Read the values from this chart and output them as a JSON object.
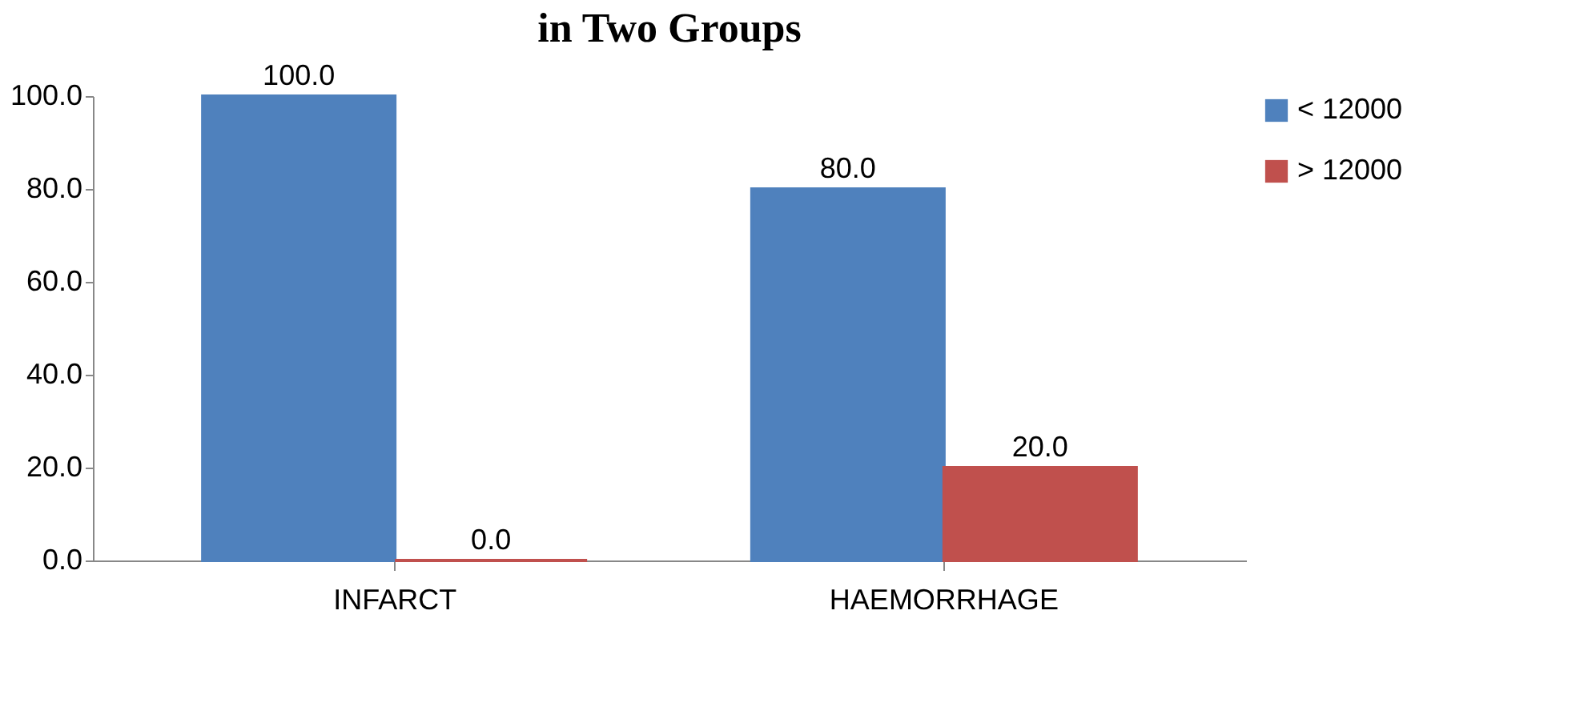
{
  "chart_data": {
    "type": "bar",
    "title": "in Two Groups",
    "categories": [
      "INFARCT",
      "HAEMORRHAGE"
    ],
    "series": [
      {
        "name": "< 12000",
        "color": "#4f81bd",
        "values": [
          100,
          80
        ],
        "value_labels": [
          "100.0",
          "80.0"
        ]
      },
      {
        "name": "> 12000",
        "color": "#c0504d",
        "values": [
          0,
          20
        ],
        "value_labels": [
          "0.0",
          "20.0"
        ]
      }
    ],
    "ylim": [
      0,
      100
    ],
    "yticks": [
      {
        "value": 0,
        "label": "0.0"
      },
      {
        "value": 20,
        "label": "20.0"
      },
      {
        "value": 40,
        "label": "40.0"
      },
      {
        "value": 60,
        "label": "60.0"
      },
      {
        "value": 80,
        "label": "80.0"
      },
      {
        "value": 100,
        "label": "100.0"
      }
    ],
    "grid": false,
    "legend": "top right"
  }
}
